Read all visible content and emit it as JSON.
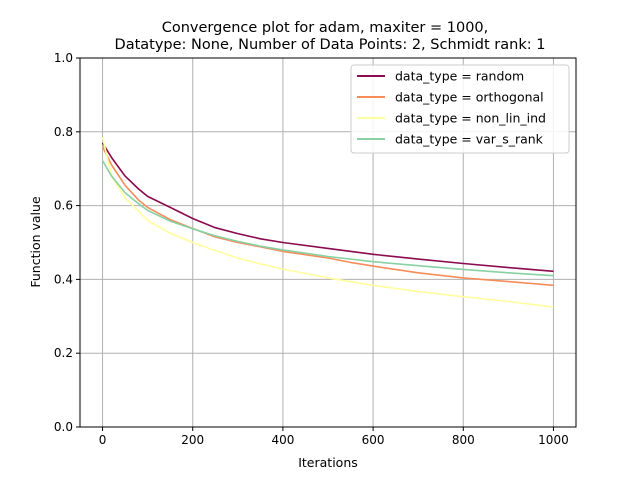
{
  "chart_data": {
    "type": "line",
    "title_line1": "Convergence plot for adam, maxiter = 1000,",
    "title_line2": "Datatype: None, Number of Data Points: 2, Schmidt rank: 1",
    "xlabel": "Iterations",
    "ylabel": "Function value",
    "xlim": [
      -50,
      1050
    ],
    "ylim": [
      0.0,
      1.0
    ],
    "xticks": [
      0,
      200,
      400,
      600,
      800,
      1000
    ],
    "xtick_labels": [
      "0",
      "200",
      "400",
      "600",
      "800",
      "1000"
    ],
    "yticks": [
      0.0,
      0.2,
      0.4,
      0.6,
      0.8,
      1.0
    ],
    "ytick_labels": [
      "0.0",
      "0.2",
      "0.4",
      "0.6",
      "0.8",
      "1.0"
    ],
    "grid": true,
    "legend_position": "top-right",
    "series": [
      {
        "name": "data_type = random",
        "color": "#8b0a50",
        "x": [
          0,
          20,
          50,
          80,
          100,
          150,
          200,
          250,
          300,
          350,
          400,
          500,
          600,
          700,
          800,
          900,
          1000
        ],
        "y": [
          0.77,
          0.73,
          0.68,
          0.645,
          0.625,
          0.595,
          0.565,
          0.54,
          0.524,
          0.51,
          0.5,
          0.484,
          0.468,
          0.455,
          0.443,
          0.432,
          0.422
        ]
      },
      {
        "name": "data_type = orthogonal",
        "color": "#f58c5a",
        "x": [
          0,
          20,
          50,
          80,
          100,
          150,
          200,
          250,
          300,
          350,
          400,
          500,
          550,
          600,
          700,
          800,
          900,
          1000
        ],
        "y": [
          0.76,
          0.71,
          0.655,
          0.615,
          0.595,
          0.562,
          0.538,
          0.515,
          0.5,
          0.488,
          0.476,
          0.458,
          0.446,
          0.436,
          0.418,
          0.404,
          0.394,
          0.384
        ]
      },
      {
        "name": "data_type = non_lin_ind",
        "color": "#ffff9e",
        "x": [
          0,
          20,
          50,
          80,
          100,
          150,
          200,
          250,
          300,
          350,
          400,
          500,
          600,
          700,
          800,
          900,
          1000
        ],
        "y": [
          0.785,
          0.68,
          0.62,
          0.585,
          0.56,
          0.525,
          0.5,
          0.478,
          0.458,
          0.442,
          0.428,
          0.404,
          0.384,
          0.367,
          0.353,
          0.34,
          0.325
        ]
      },
      {
        "name": "data_type = var_s_rank",
        "color": "#88d1a3",
        "x": [
          0,
          20,
          50,
          80,
          100,
          150,
          200,
          250,
          300,
          350,
          400,
          500,
          600,
          700,
          800,
          900,
          1000
        ],
        "y": [
          0.722,
          0.68,
          0.635,
          0.605,
          0.587,
          0.558,
          0.537,
          0.518,
          0.503,
          0.49,
          0.48,
          0.462,
          0.448,
          0.437,
          0.427,
          0.418,
          0.41
        ]
      }
    ]
  }
}
